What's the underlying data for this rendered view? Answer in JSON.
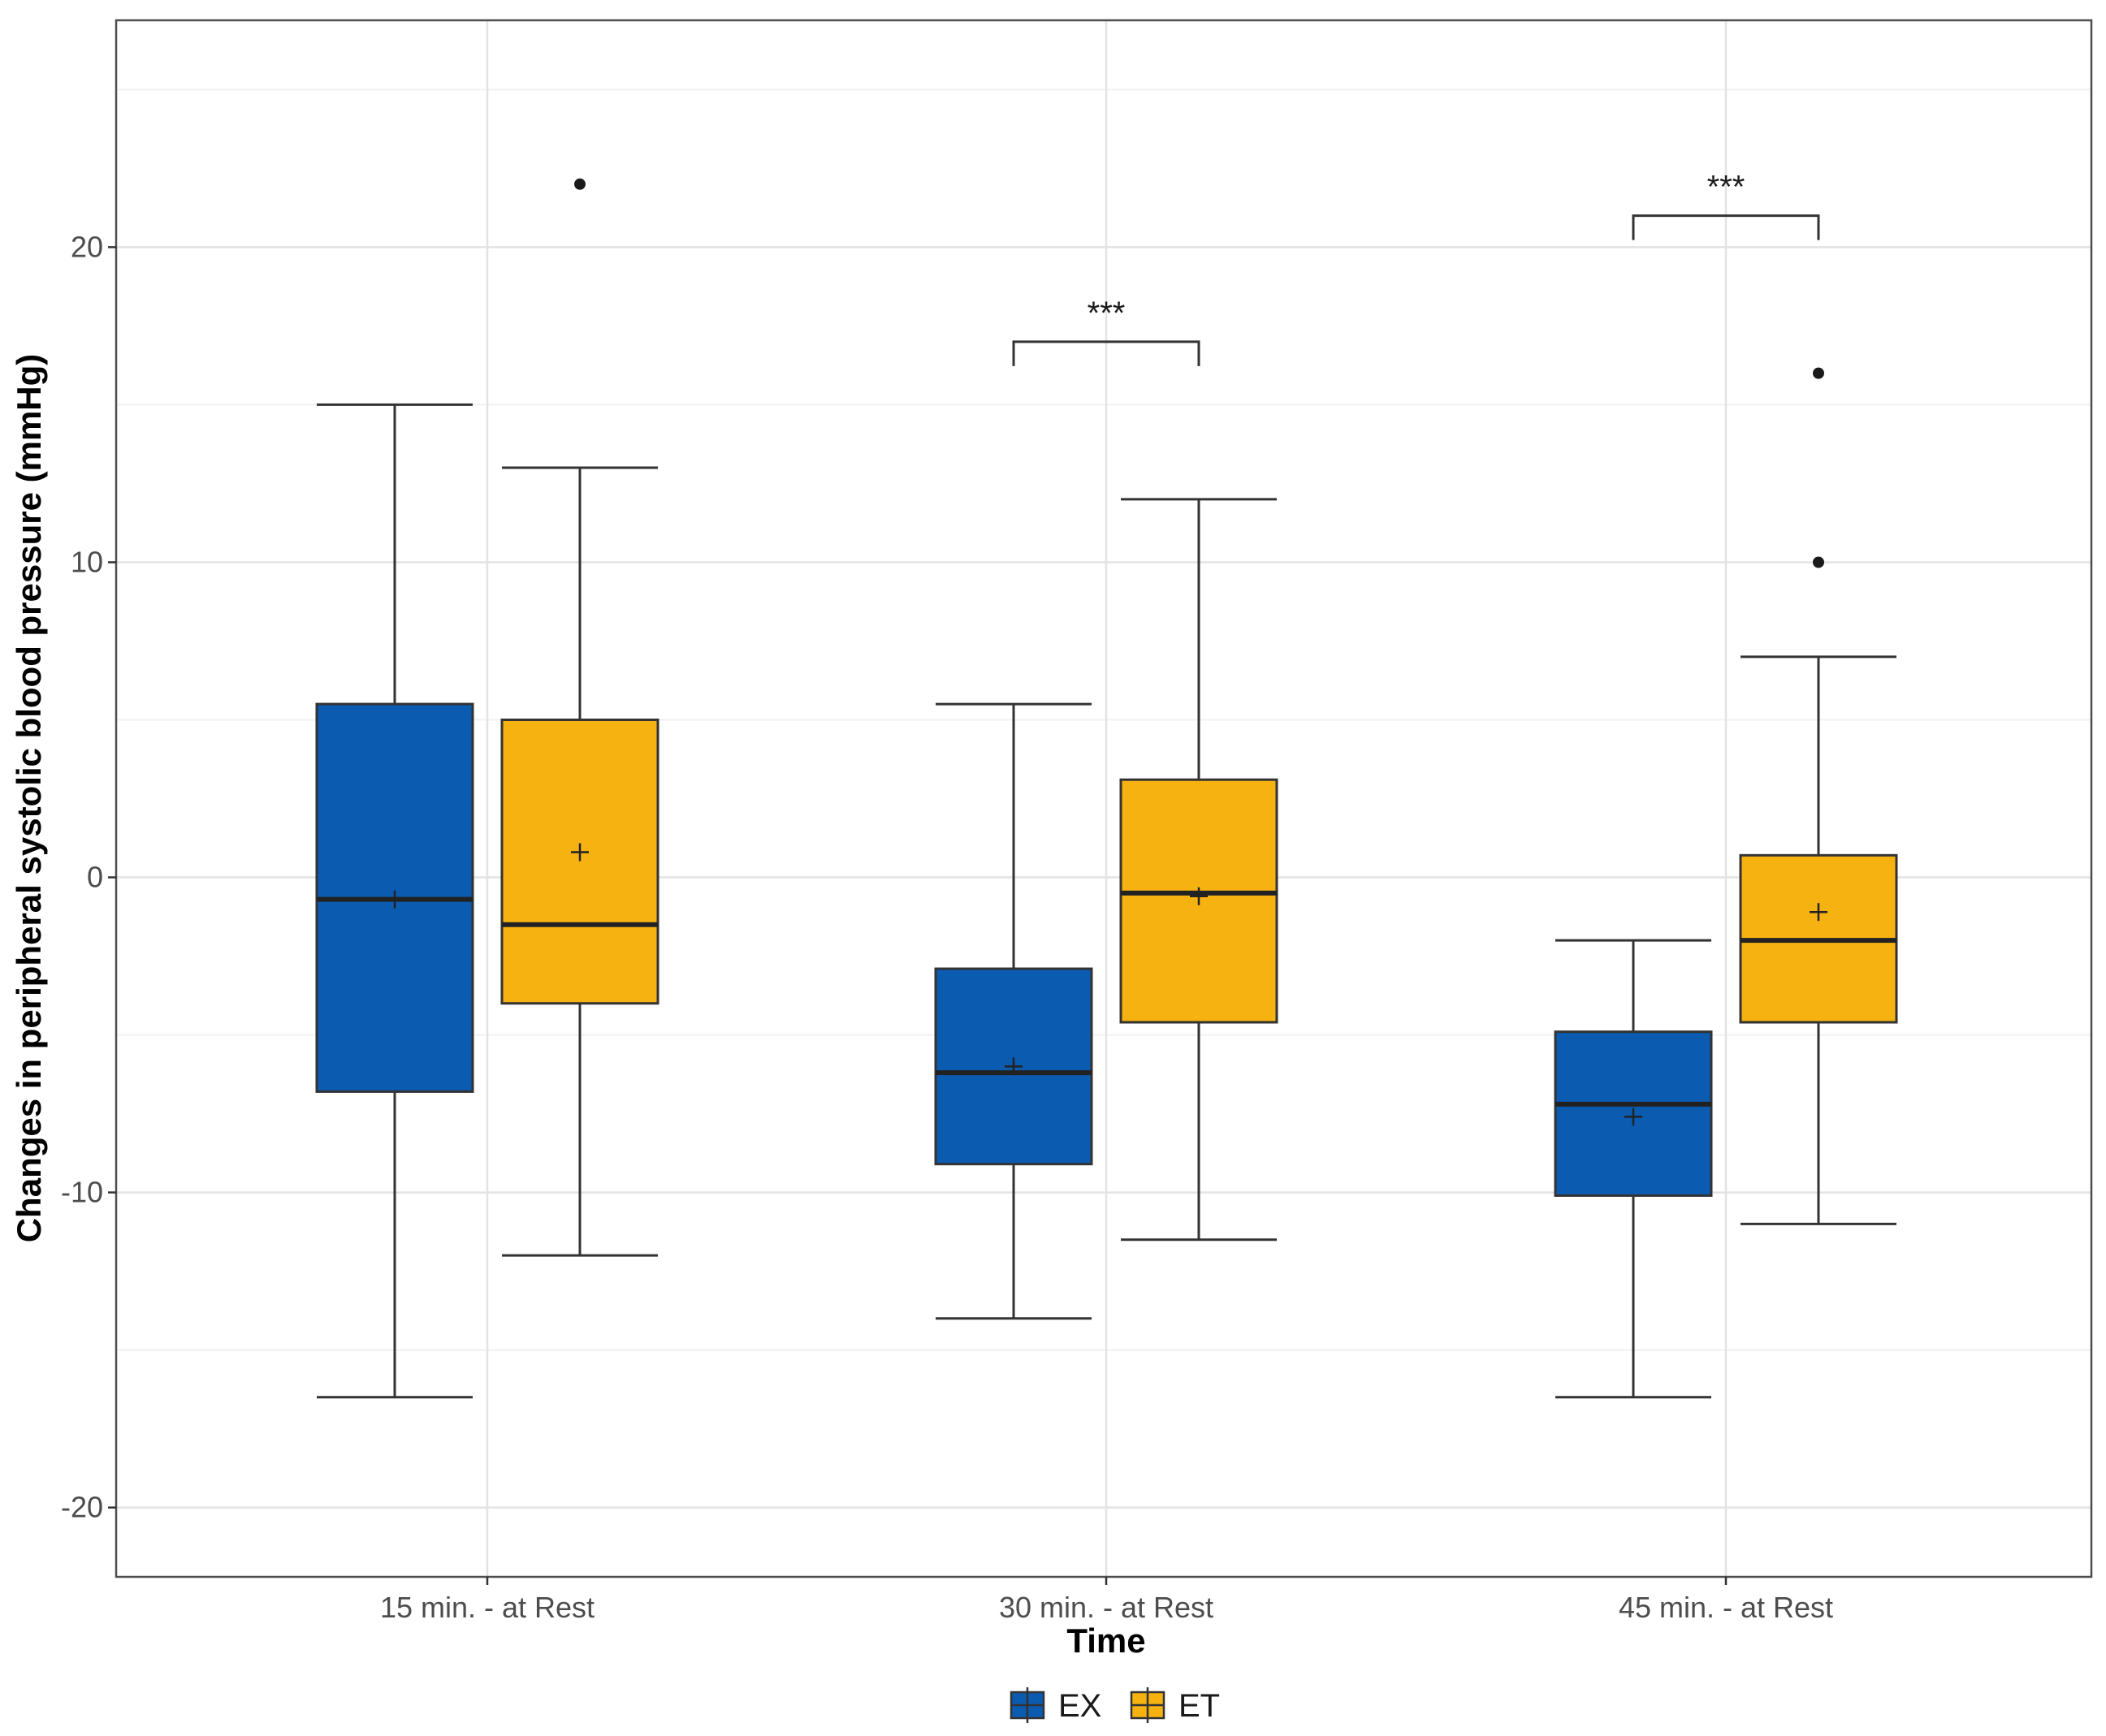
{
  "chart_data": {
    "type": "boxplot",
    "xlabel": "Time",
    "ylabel": "Changes in peripheral systolic blood pressure (mmHg)",
    "ylim": [
      -22.2,
      27.2
    ],
    "yticks": [
      -20,
      -10,
      0,
      10,
      20
    ],
    "categories": [
      "15 min. - at Rest",
      "30 min. - at Rest",
      "45 min. - at Rest"
    ],
    "series": [
      {
        "name": "EX",
        "color": "#0b5bb0",
        "boxes": [
          {
            "whisker_low": -16.5,
            "q1": -6.8,
            "median": -0.7,
            "q3": 5.5,
            "whisker_high": 15.0,
            "mean": -0.7,
            "outliers": []
          },
          {
            "whisker_low": -14.0,
            "q1": -9.1,
            "median": -6.2,
            "q3": -2.9,
            "whisker_high": 5.5,
            "mean": -6.0,
            "outliers": []
          },
          {
            "whisker_low": -16.5,
            "q1": -10.1,
            "median": -7.2,
            "q3": -4.9,
            "whisker_high": -2.0,
            "mean": -7.6,
            "outliers": []
          }
        ]
      },
      {
        "name": "ET",
        "color": "#f6b211",
        "boxes": [
          {
            "whisker_low": -12.0,
            "q1": -4.0,
            "median": -1.5,
            "q3": 5.0,
            "whisker_high": 13.0,
            "mean": 0.8,
            "outliers": [
              22.0
            ]
          },
          {
            "whisker_low": -11.5,
            "q1": -4.6,
            "median": -0.5,
            "q3": 3.1,
            "whisker_high": 12.0,
            "mean": -0.6,
            "outliers": []
          },
          {
            "whisker_low": -11.0,
            "q1": -4.6,
            "median": -2.0,
            "q3": 0.7,
            "whisker_high": 7.0,
            "mean": -1.1,
            "outliers": [
              10.0,
              16.0
            ]
          }
        ]
      }
    ],
    "annotations": [
      {
        "category": "30 min. - at Rest",
        "text": "***",
        "y": 17.0
      },
      {
        "category": "45 min. - at Rest",
        "text": "***",
        "y": 21.0
      }
    ],
    "legend": {
      "position": "bottom",
      "entries": [
        "EX",
        "ET"
      ]
    },
    "grid": true
  }
}
